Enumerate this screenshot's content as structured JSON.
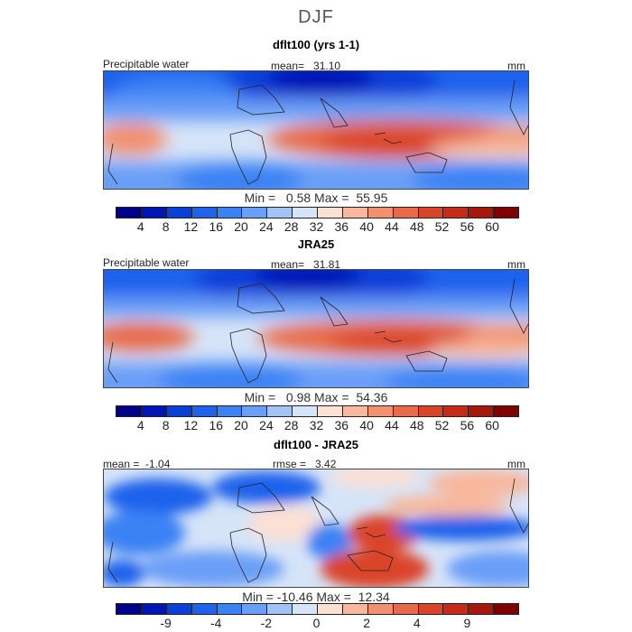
{
  "figure": {
    "season": "DJF",
    "panels": [
      {
        "title": "dflt100 (yrs 1-1)",
        "field": "Precipitable water",
        "mean_label": "mean=",
        "mean_value": "31.10",
        "units": "mm",
        "minmax": "Min =   0.58 Max =  55.95"
      },
      {
        "title": "JRA25",
        "field": "Precipitable water",
        "mean_label": "mean=",
        "mean_value": "31.81",
        "units": "mm",
        "minmax": "Min =   0.98 Max =  54.36"
      },
      {
        "title": "dflt100 - JRA25",
        "mean_label": "mean =",
        "mean_value": "-1.04",
        "rmse_label": "rmse =",
        "rmse_value": "3.42",
        "units": "mm",
        "minmax": "Min = -10.46 Max =  12.34"
      }
    ]
  },
  "colorbars": {
    "absolute": {
      "colors": [
        "#00008b",
        "#0015b6",
        "#0a3fd8",
        "#1f62ec",
        "#3b82f4",
        "#6a9ff7",
        "#a3c2f5",
        "#d6e4f8",
        "#fbe0d4",
        "#f8b89d",
        "#f2906f",
        "#e86a48",
        "#da452a",
        "#c62a18",
        "#a8170c",
        "#800000"
      ],
      "ticks": [
        "4",
        "8",
        "12",
        "16",
        "20",
        "24",
        "28",
        "32",
        "36",
        "40",
        "44",
        "48",
        "52",
        "56",
        "60"
      ]
    },
    "difference": {
      "colors": [
        "#00008b",
        "#0015b6",
        "#0a3fd8",
        "#1f62ec",
        "#3b82f4",
        "#6a9ff7",
        "#a3c2f5",
        "#d6e4f8",
        "#fbe0d4",
        "#f8b89d",
        "#f2906f",
        "#e86a48",
        "#da452a",
        "#c62a18",
        "#a8170c",
        "#800000"
      ],
      "ticks": [
        "-9",
        "-4",
        "-2",
        "0",
        "2",
        "4",
        "9"
      ]
    }
  }
}
